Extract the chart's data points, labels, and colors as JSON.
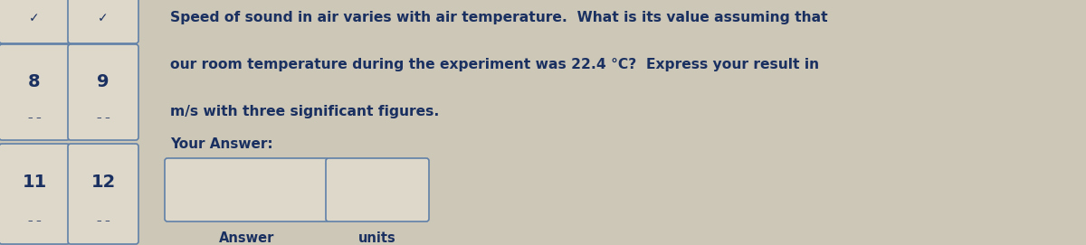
{
  "bg_color": "#cdc7b8",
  "card_color": "#ddd8ca",
  "card_border_color": "#6080a8",
  "text_color": "#1a3060",
  "question_text_line1": "Speed of sound in air varies with air temperature.  What is its value assuming that",
  "question_text_line2": "our room temperature during the experiment was 22.4 °C?  Express your result in",
  "question_text_line3": "m/s with three significant figures.",
  "your_answer_label": "Your Answer:",
  "answer_label": "Answer",
  "units_label": "units",
  "cards_top_row": [
    "8",
    "9"
  ],
  "cards_bottom_row": [
    "11",
    "12"
  ],
  "fig_w": 12.0,
  "fig_h": 2.71,
  "dpi": 100
}
